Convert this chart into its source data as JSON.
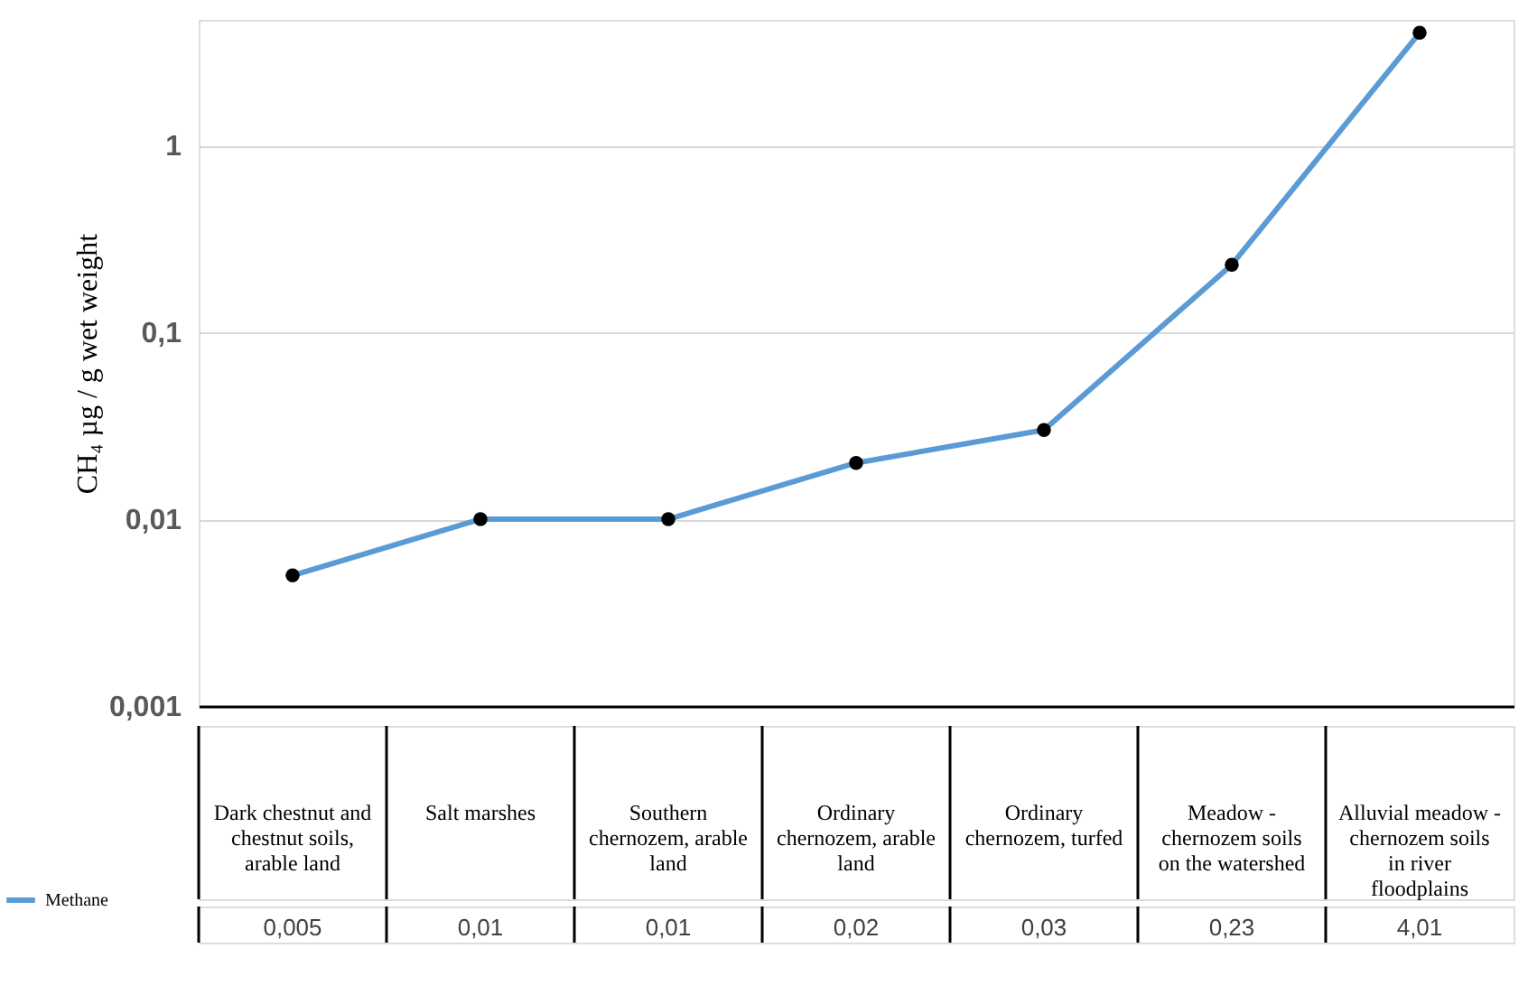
{
  "chart_data": {
    "type": "line",
    "ylabel": "CH₄ µg / g wet weight",
    "categories": [
      "Dark chestnut and chestnut soils, arable land",
      "Salt marshes",
      "Southern chernozem, arable land",
      "Ordinary chernozem, arable land",
      "Ordinary chernozem, turfed",
      "Meadow - chernozem soils on the watershed",
      "Alluvial meadow - chernozem soils in river floodplains"
    ],
    "series": [
      {
        "name": "Methane",
        "color": "#5b9bd5",
        "values": [
          0.005,
          0.01,
          0.01,
          0.02,
          0.03,
          0.23,
          4.01
        ],
        "value_labels": [
          "0,005",
          "0,01",
          "0,01",
          "0,02",
          "0,03",
          "0,23",
          "4,01"
        ]
      }
    ],
    "log": "y",
    "ylim": [
      0.001,
      4.7
    ],
    "yticks": [
      {
        "value": 0.001,
        "label": "0,001"
      },
      {
        "value": 0.01,
        "label": "0,01"
      },
      {
        "value": 0.1,
        "label": "0,1"
      },
      {
        "value": 1,
        "label": "1"
      }
    ],
    "grid": "y",
    "marker": "circle",
    "line_style": "solid",
    "legend": "bottom left"
  }
}
